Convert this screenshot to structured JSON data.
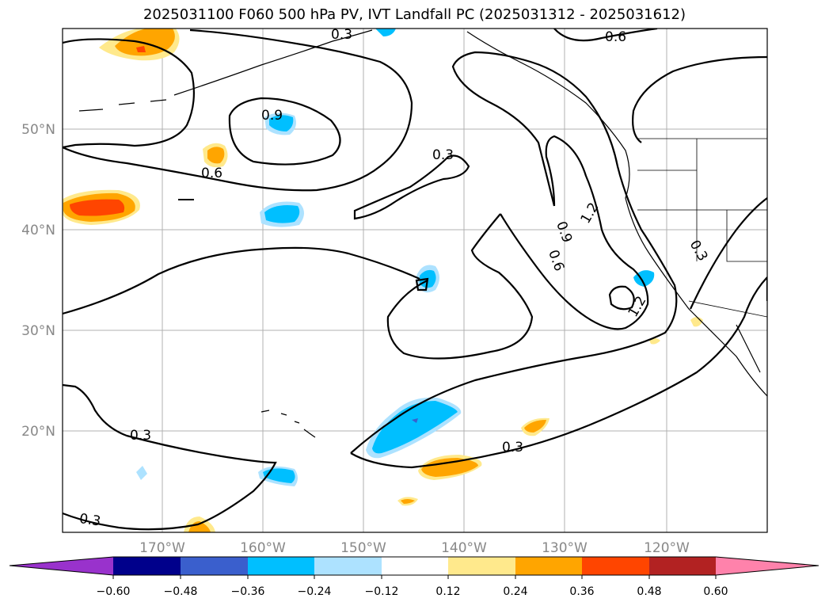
{
  "title": "2025031100 F060 500 hPa PV, IVT Landfall PC (2025031312 - 2025031612)",
  "map": {
    "lon_labels": [
      "170°W",
      "160°W",
      "150°W",
      "140°W",
      "130°W",
      "120°W"
    ],
    "lat_labels": [
      "50°N",
      "40°N",
      "30°N",
      "20°N"
    ],
    "contour_labels": [
      "0.3",
      "0.6",
      "0.9",
      "0.6",
      "0.3",
      "0.9",
      "0.6",
      "1.2",
      "1.2",
      "0.3",
      "0.3",
      "0.3",
      "0.3"
    ],
    "gridline_color": "#b0b0b0"
  },
  "colorbar": {
    "ticks": [
      "−0.60",
      "−0.48",
      "−0.36",
      "−0.24",
      "−0.12",
      "0.12",
      "0.24",
      "0.36",
      "0.48",
      "0.60"
    ],
    "colors": [
      "#9932CC",
      "#00008B",
      "#3A5FCD",
      "#00BFFF",
      "#ADE2FF",
      "#FFFFFF",
      "#FFE98C",
      "#FFA500",
      "#FF4500",
      "#B22222",
      "#FF82AB"
    ]
  }
}
